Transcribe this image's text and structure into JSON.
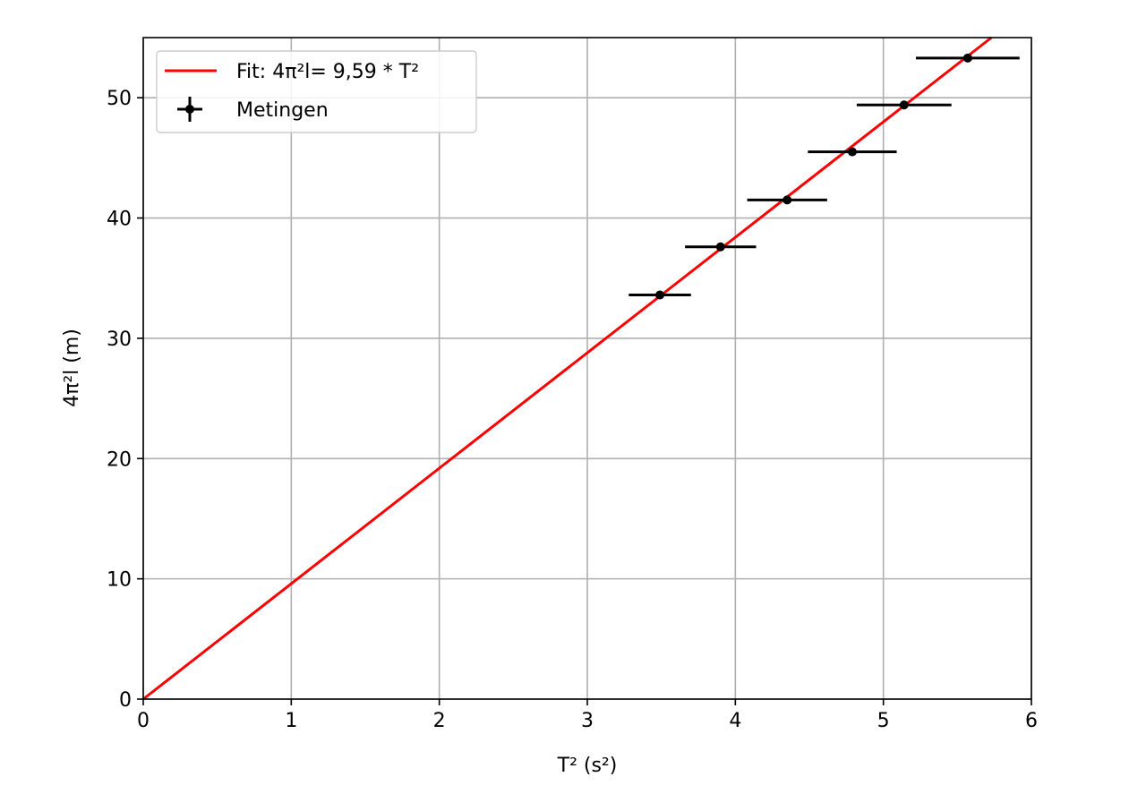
{
  "chart_data": {
    "type": "scatter",
    "title": "",
    "xlabel": "T² (s²)",
    "ylabel": "4π²l (m)",
    "xlim": [
      0,
      6
    ],
    "ylim": [
      0,
      55
    ],
    "xticks": [
      0,
      1,
      2,
      3,
      4,
      5,
      6
    ],
    "yticks": [
      0,
      10,
      20,
      30,
      40,
      50
    ],
    "grid": true,
    "legend_position": "top-left",
    "series": [
      {
        "name": "Fit: 4π²l= 9,59 * T²",
        "kind": "line",
        "color": "#ff0000",
        "slope": 9.59,
        "x": [
          0,
          5.73
        ],
        "y": [
          0,
          55
        ]
      },
      {
        "name": "Metingen",
        "kind": "errorbar",
        "color": "#000000",
        "x": [
          3.49,
          3.9,
          4.35,
          4.79,
          5.14,
          5.57
        ],
        "y": [
          33.6,
          37.6,
          41.5,
          45.5,
          49.4,
          53.3
        ],
        "xerr": [
          0.21,
          0.24,
          0.27,
          0.3,
          0.32,
          0.35
        ]
      }
    ]
  }
}
